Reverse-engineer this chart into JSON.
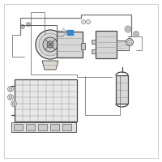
{
  "bg_color": "#ffffff",
  "border_color": "#bbbbbb",
  "line_color": "#777777",
  "dark_line": "#444444",
  "mid_line": "#999999",
  "highlight_color": "#3388cc",
  "figsize": [
    2.0,
    2.0
  ],
  "dpi": 100
}
